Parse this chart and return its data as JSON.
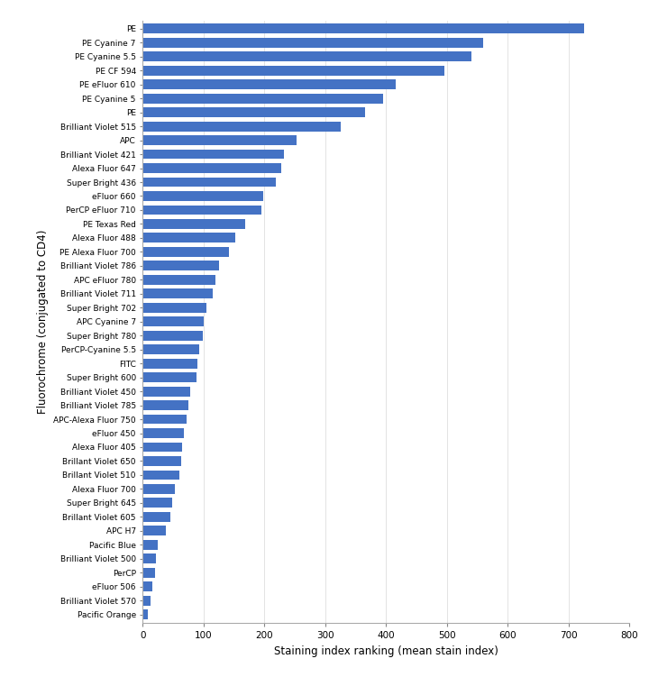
{
  "categories": [
    "PE",
    "PE Cyanine 7",
    "PE Cyanine 5.5",
    "PE CF 594",
    "PE eFluor 610",
    "PE Cyanine 5",
    "PE",
    "Brilliant Violet 515",
    "APC",
    "Brilliant Violet 421",
    "Alexa Fluor 647",
    "Super Bright 436",
    "eFluor 660",
    "PerCP eFluor 710",
    "PE Texas Red",
    "Alexa Fluor 488",
    "PE Alexa Fluor 700",
    "Brilliant Violet 786",
    "APC eFluor 780",
    "Brilliant Violet 711",
    "Super Bright 702",
    "APC Cyanine 7",
    "Super Bright 780",
    "PerCP-Cyanine 5.5",
    "FITC",
    "Super Bright 600",
    "Brilliant Violet 450",
    "Brilliant Violet 785",
    "APC-Alexa Fluor 750",
    "eFluor 450",
    "Alexa Fluor 405",
    "Brillant Violet 650",
    "Brillant Violet 510",
    "Alexa Fluor 700",
    "Super Bright 645",
    "Brillant Violet 605",
    "APC H7",
    "Pacific Blue",
    "Brilliant Violet 500",
    "PerCP",
    "eFluor 506",
    "Brilliant Violet 570",
    "Pacific Orange"
  ],
  "values": [
    725,
    560,
    540,
    495,
    415,
    395,
    365,
    325,
    252,
    232,
    228,
    218,
    198,
    195,
    168,
    152,
    142,
    125,
    120,
    115,
    105,
    100,
    98,
    92,
    90,
    88,
    78,
    75,
    72,
    68,
    65,
    63,
    60,
    52,
    48,
    46,
    38,
    25,
    22,
    20,
    15,
    12,
    8
  ],
  "bar_color": "#4472c4",
  "xlabel": "Staining index ranking (mean stain index)",
  "ylabel": "Fluorochrome (conjugated to CD4)",
  "xlim": [
    0,
    800
  ],
  "xticks": [
    0,
    100,
    200,
    300,
    400,
    500,
    600,
    700,
    800
  ],
  "bar_height": 0.7,
  "title": "",
  "figsize": [
    7.2,
    7.51
  ],
  "dpi": 100
}
